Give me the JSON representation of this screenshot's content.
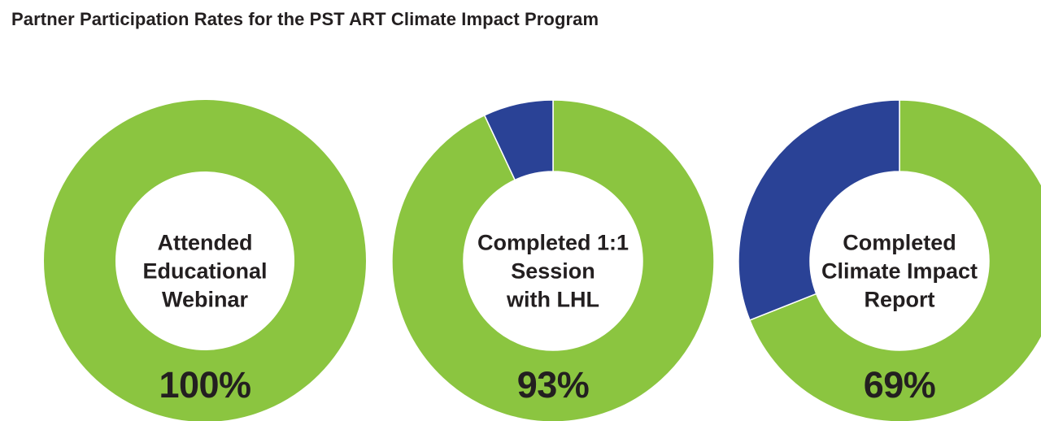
{
  "page": {
    "background": "#FFFFFF",
    "text_color": "#231F20"
  },
  "chart_data": {
    "type": "pie",
    "variant": "donut",
    "title": "Partner Participation Rates for the PST ART Climate Impact Program",
    "unit": "%",
    "legend": null,
    "palette": {
      "participated_green": "#8BC540",
      "remainder_blue": "#2A4296"
    },
    "donuts": [
      {
        "name": "attended-educational-webinar",
        "label_lines": [
          "Attended",
          "Educational",
          "Webinar"
        ],
        "label": "Attended Educational Webinar",
        "value_pct": 100,
        "value_label": "100%",
        "segments": [
          {
            "name": "participated",
            "value": 100,
            "color": "#8BC540"
          }
        ]
      },
      {
        "name": "completed-1-1-session-with-lhl",
        "label_lines": [
          "Completed 1:1",
          "Session",
          "with LHL"
        ],
        "label": "Completed 1:1 Session with LHL",
        "value_pct": 93,
        "value_label": "93%",
        "segments": [
          {
            "name": "participated",
            "value": 93,
            "color": "#8BC540"
          },
          {
            "name": "remainder",
            "value": 7,
            "color": "#2A4296"
          }
        ]
      },
      {
        "name": "completed-climate-impact-report",
        "label_lines": [
          "Completed",
          "Climate Impact",
          "Report"
        ],
        "label": "Completed Climate Impact Report",
        "value_pct": 69,
        "value_label": "69%",
        "segments": [
          {
            "name": "participated",
            "value": 69,
            "color": "#8BC540"
          },
          {
            "name": "remainder",
            "value": 31,
            "color": "#2A4296"
          }
        ]
      }
    ]
  }
}
